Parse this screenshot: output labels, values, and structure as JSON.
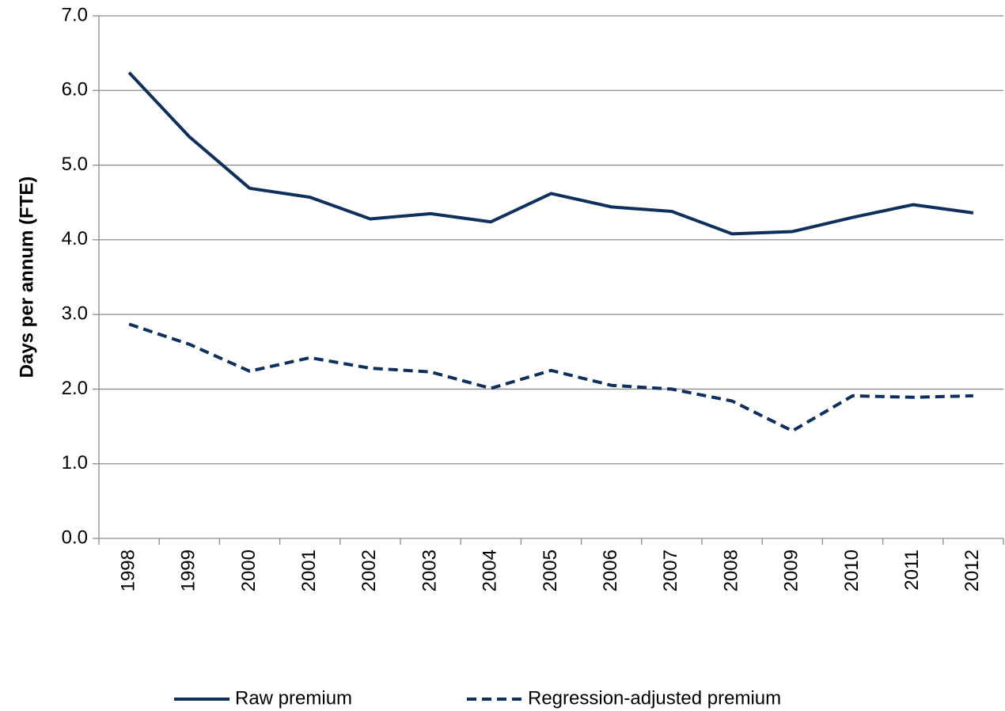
{
  "chart_data": {
    "type": "line",
    "y_label": "Days per annum (FTE)",
    "categories": [
      "1998",
      "1999",
      "2000",
      "2001",
      "2002",
      "2003",
      "2004",
      "2005",
      "2006",
      "2007",
      "2008",
      "2009",
      "2010",
      "2011",
      "2012"
    ],
    "series": [
      {
        "name": "Raw premium",
        "color": "#0f2f5c",
        "line_style": "solid",
        "values": [
          6.24,
          5.38,
          4.69,
          4.57,
          4.28,
          4.35,
          4.24,
          4.62,
          4.44,
          4.38,
          4.08,
          4.11,
          4.3,
          4.47,
          4.36
        ]
      },
      {
        "name": "Regression-adjusted premium",
        "color": "#0f2f5c",
        "line_style": "dashed",
        "values": [
          2.87,
          2.6,
          2.24,
          2.42,
          2.28,
          2.23,
          2.01,
          2.25,
          2.05,
          2.0,
          1.84,
          1.44,
          1.91,
          1.89,
          1.91
        ]
      }
    ],
    "ylim": [
      0,
      7
    ],
    "yticks": [
      {
        "value": 0,
        "label": "0.0"
      },
      {
        "value": 1,
        "label": "1.0"
      },
      {
        "value": 2,
        "label": "2.0"
      },
      {
        "value": 3,
        "label": "3.0"
      },
      {
        "value": 4,
        "label": "4.0"
      },
      {
        "value": 5,
        "label": "5.0"
      },
      {
        "value": 6,
        "label": "6.0"
      },
      {
        "value": 7,
        "label": "7.0"
      }
    ],
    "grid": true,
    "legend": "bottom"
  }
}
